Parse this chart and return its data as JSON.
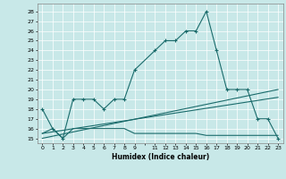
{
  "xlabel": "Humidex (Indice chaleur)",
  "bg_color": "#c8e8e8",
  "line_color": "#1a6b6b",
  "xtick_labels": [
    "0",
    "1",
    "2",
    "3",
    "4",
    "5",
    "6",
    "7",
    "8",
    "9",
    "",
    "11",
    "12",
    "13",
    "14",
    "15",
    "16",
    "17",
    "18",
    "19",
    "20",
    "21",
    "22",
    "23"
  ],
  "xtick_positions": [
    0,
    1,
    2,
    3,
    4,
    5,
    6,
    7,
    8,
    9,
    10,
    11,
    12,
    13,
    14,
    15,
    16,
    17,
    18,
    19,
    20,
    21,
    22,
    23
  ],
  "yticks": [
    15,
    16,
    17,
    18,
    19,
    20,
    21,
    22,
    23,
    24,
    25,
    26,
    27,
    28
  ],
  "ylim": [
    14.5,
    28.8
  ],
  "xlim": [
    -0.5,
    23.5
  ],
  "series1_x": [
    0,
    1,
    2,
    3,
    4,
    5,
    6,
    7,
    8,
    9,
    11,
    12,
    13,
    14,
    15,
    16,
    17,
    18,
    19,
    20,
    21,
    22,
    23
  ],
  "series1_y": [
    18,
    16,
    15,
    19,
    19,
    19,
    18,
    19,
    19,
    22,
    24,
    25,
    25,
    26,
    26,
    28,
    24,
    20,
    20,
    20,
    17,
    17,
    15
  ],
  "series2_x": [
    0,
    1,
    2,
    3,
    4,
    5,
    6,
    7,
    8,
    9,
    10,
    11,
    12,
    13,
    14,
    15,
    16,
    17,
    18,
    19,
    20,
    21,
    22,
    23
  ],
  "series2_y": [
    15.5,
    16,
    15,
    16,
    16,
    16,
    16,
    16,
    16,
    15.5,
    15.5,
    15.5,
    15.5,
    15.5,
    15.5,
    15.5,
    15.3,
    15.3,
    15.3,
    15.3,
    15.3,
    15.3,
    15.3,
    15.3
  ],
  "series3_x": [
    0,
    23
  ],
  "series3_y": [
    15,
    20
  ],
  "series4_x": [
    0,
    23
  ],
  "series4_y": [
    15.5,
    19.2
  ]
}
